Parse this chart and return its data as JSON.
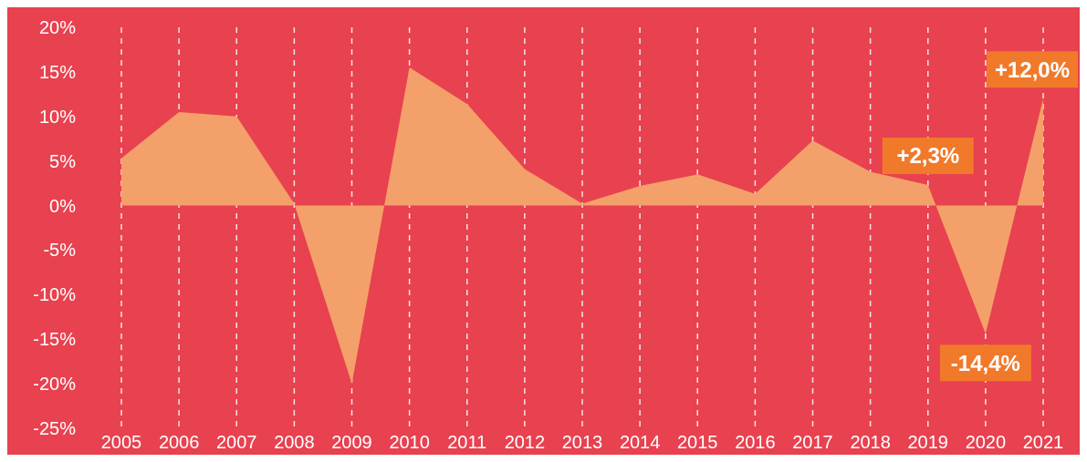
{
  "chart_data": {
    "type": "area",
    "categories": [
      "2005",
      "2006",
      "2007",
      "2008",
      "2009",
      "2010",
      "2011",
      "2012",
      "2013",
      "2014",
      "2015",
      "2016",
      "2017",
      "2018",
      "2019",
      "2020",
      "2021"
    ],
    "series": [
      {
        "color": "#f4a06a",
        "values": [
          5.3,
          10.5,
          10,
          0.2,
          -20,
          15.5,
          11.4,
          4.1,
          0.2,
          2.2,
          3.5,
          1.3,
          7.3,
          3.8,
          2.3,
          -14.4,
          12.0
        ],
        "value_labels": [
          null,
          null,
          null,
          null,
          null,
          null,
          null,
          null,
          null,
          null,
          null,
          null,
          null,
          null,
          "+2,3%",
          "-14,4%",
          "+12,0%"
        ]
      }
    ],
    "ylim": [
      -25,
      20
    ],
    "yticks": [
      {
        "value": -25,
        "label": "-25%"
      },
      {
        "value": -20,
        "label": "-20%"
      },
      {
        "value": -15,
        "label": "-15%"
      },
      {
        "value": -10,
        "label": "-10%"
      },
      {
        "value": -5,
        "label": "-5%"
      },
      {
        "value": 0,
        "label": "0%"
      },
      {
        "value": 5,
        "label": "5%"
      },
      {
        "value": 10,
        "label": "10%"
      },
      {
        "value": 15,
        "label": "15%"
      },
      {
        "value": 20,
        "label": "20%"
      }
    ],
    "grid": "x"
  }
}
